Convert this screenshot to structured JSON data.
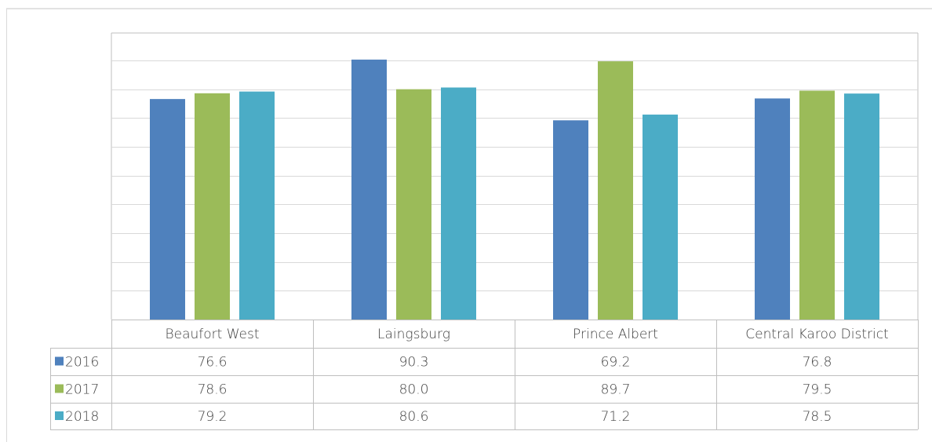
{
  "chart_data": {
    "type": "bar",
    "title": "",
    "xlabel": "",
    "ylabel": "",
    "ylim": [
      0,
      90
    ],
    "grid": true,
    "legend": "data-table",
    "categories": [
      "Beaufort West",
      "Laingsburg",
      "Prince Albert",
      "Central Karoo District"
    ],
    "series": [
      {
        "name": "2016",
        "color": "#4F81BD",
        "values": [
          76.6,
          90.3,
          69.2,
          76.8
        ],
        "labels": [
          "76.6",
          "90.3",
          "69.2",
          "76.8"
        ]
      },
      {
        "name": "2017",
        "color": "#9BBB59",
        "values": [
          78.6,
          80.0,
          89.7,
          79.5
        ],
        "labels": [
          "78.6",
          "80.0",
          "89.7",
          "79.5"
        ]
      },
      {
        "name": "2018",
        "color": "#4BACC6",
        "values": [
          79.2,
          80.6,
          71.2,
          78.5
        ],
        "labels": [
          "79.2",
          "80.6",
          "71.2",
          "78.5"
        ]
      }
    ]
  }
}
